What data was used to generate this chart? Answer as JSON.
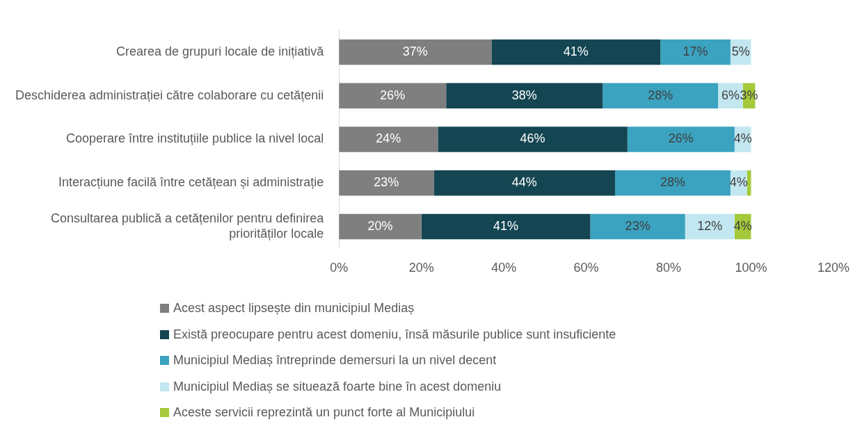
{
  "chart_data": {
    "type": "bar",
    "orientation": "horizontal",
    "stacked": true,
    "categories": [
      "Crearea de grupuri locale de inițiativă",
      "Deschiderea administrației către colaborare cu cetățenii",
      "Cooperare între instituțiile publice la nivel local",
      "Interacțiune facilă între cetățean și administrație",
      "Consultarea publică a cetățenilor pentru definirea priorităților locale"
    ],
    "series": [
      {
        "name": "Acest aspect lipsește din municipiul Mediaș",
        "color": "#7f7f7f",
        "values": [
          37,
          26,
          24,
          23,
          20
        ],
        "value_labels": [
          "37%",
          "26%",
          "24%",
          "23%",
          "20%"
        ]
      },
      {
        "name": "Există preocupare pentru acest domeniu, însă măsurile publice sunt insuficiente",
        "color": "#144552",
        "values": [
          41,
          38,
          46,
          44,
          41
        ],
        "value_labels": [
          "41%",
          "38%",
          "46%",
          "44%",
          "41%"
        ]
      },
      {
        "name": "Municipiul Mediaș întreprinde demersuri la un nivel decent",
        "color": "#3ba2bf",
        "values": [
          17,
          28,
          26,
          28,
          23
        ],
        "value_labels": [
          "17%",
          "28%",
          "26%",
          "28%",
          "23%"
        ]
      },
      {
        "name": "Municipiul Mediaș se situează foarte bine în acest domeniu",
        "color": "#c2e7f0",
        "values": [
          5,
          6,
          4,
          4,
          12
        ],
        "value_labels": [
          "5%",
          "6%",
          "4%",
          "4%",
          "12%"
        ]
      },
      {
        "name": "Aceste servicii reprezintă un punct forte al Municipiului",
        "color": "#a4c93a",
        "values": [
          null,
          3,
          null,
          1,
          4
        ],
        "value_labels": [
          null,
          "3%",
          null,
          null,
          "4%"
        ]
      }
    ],
    "xlim": [
      0,
      120
    ],
    "xticks": [
      {
        "value": 0,
        "label": "0%"
      },
      {
        "value": 20,
        "label": "20%"
      },
      {
        "value": 40,
        "label": "40%"
      },
      {
        "value": 60,
        "label": "60%"
      },
      {
        "value": 80,
        "label": "80%"
      },
      {
        "value": 100,
        "label": "100%"
      },
      {
        "value": 120,
        "label": "120%"
      }
    ],
    "grid": false,
    "legend": "bottom"
  }
}
